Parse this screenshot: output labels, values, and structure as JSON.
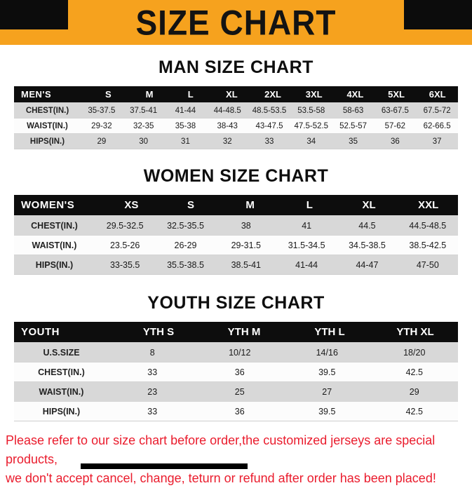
{
  "page": {
    "title": "SIZE CHART",
    "colors": {
      "banner_background": "#f6a21e",
      "table_header_background": "#0d0d0d",
      "row_stripe_gray": "#d8d8d8",
      "footer_text": "#ea1c2d"
    },
    "footer": {
      "line1": "Please refer to our size chart before order,the customized jerseys are special products,",
      "line2": "we don't accept cancel, change, teturn or refund after order has been placed!"
    }
  },
  "sections": [
    {
      "id": "men",
      "heading": "MAN SIZE CHART",
      "table": {
        "header": [
          "MEN'S",
          "S",
          "M",
          "L",
          "XL",
          "2XL",
          "3XL",
          "4XL",
          "5XL",
          "6XL"
        ],
        "rows": [
          [
            "CHEST(IN.)",
            "35-37.5",
            "37.5-41",
            "41-44",
            "44-48.5",
            "48.5-53.5",
            "53.5-58",
            "58-63",
            "63-67.5",
            "67.5-72"
          ],
          [
            "WAIST(IN.)",
            "29-32",
            "32-35",
            "35-38",
            "38-43",
            "43-47.5",
            "47.5-52.5",
            "52.5-57",
            "57-62",
            "62-66.5"
          ],
          [
            "HIPS(IN.)",
            "29",
            "30",
            "31",
            "32",
            "33",
            "34",
            "35",
            "36",
            "37"
          ]
        ]
      }
    },
    {
      "id": "women",
      "heading": "WOMEN SIZE CHART",
      "table": {
        "header": [
          "WOMEN'S",
          "XS",
          "S",
          "M",
          "L",
          "XL",
          "XXL"
        ],
        "rows": [
          [
            "CHEST(IN.)",
            "29.5-32.5",
            "32.5-35.5",
            "38",
            "41",
            "44.5",
            "44.5-48.5"
          ],
          [
            "WAIST(IN.)",
            "23.5-26",
            "26-29",
            "29-31.5",
            "31.5-34.5",
            "34.5-38.5",
            "38.5-42.5"
          ],
          [
            "HIPS(IN.)",
            "33-35.5",
            "35.5-38.5",
            "38.5-41",
            "41-44",
            "44-47",
            "47-50"
          ]
        ]
      }
    },
    {
      "id": "youth",
      "heading": "YOUTH SIZE CHART",
      "table": {
        "header": [
          "YOUTH",
          "YTH S",
          "YTH M",
          "YTH L",
          "YTH XL"
        ],
        "rows": [
          [
            "U.S.SIZE",
            "8",
            "10/12",
            "14/16",
            "18/20"
          ],
          [
            "CHEST(IN.)",
            "33",
            "36",
            "39.5",
            "42.5"
          ],
          [
            "WAIST(IN.)",
            "23",
            "25",
            "27",
            "29"
          ],
          [
            "HIPS(IN.)",
            "33",
            "36",
            "39.5",
            "42.5"
          ]
        ]
      }
    }
  ]
}
